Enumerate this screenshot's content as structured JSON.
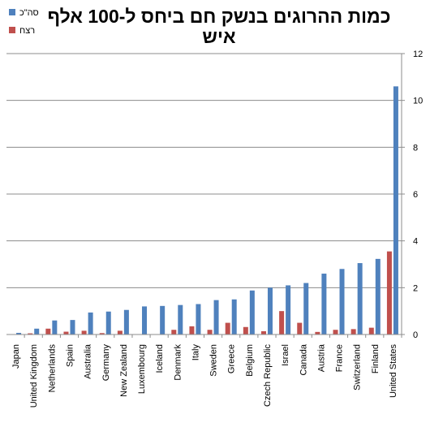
{
  "chart_data": {
    "type": "bar",
    "title_lines": [
      "כמות ההרוגים בנשק חם ביחס ל-100 אלף",
      "איש"
    ],
    "categories": [
      "Japan",
      "United Kingdom",
      "Netherlands",
      "Spain",
      "Australia",
      "Germany",
      "New Zealand",
      "Luxembourg",
      "Iceland",
      "Denmark",
      "Italy",
      "Sweden",
      "Greece",
      "Belgium",
      "Czech Republic",
      "Israel",
      "Canada",
      "Austria",
      "France",
      "Switzerland",
      "Finland",
      "United States"
    ],
    "series": [
      {
        "name": "סה\"כ",
        "color": "#4F81BD",
        "values": [
          0.07,
          0.25,
          0.6,
          0.62,
          0.94,
          0.98,
          1.05,
          1.2,
          1.22,
          1.26,
          1.3,
          1.47,
          1.5,
          1.88,
          2.0,
          2.1,
          2.2,
          2.6,
          2.8,
          3.05,
          3.23,
          10.6
        ]
      },
      {
        "name": "רצח",
        "color": "#C0504D",
        "values": [
          0.0,
          0.05,
          0.25,
          0.12,
          0.16,
          0.06,
          0.16,
          0.0,
          0.0,
          0.2,
          0.35,
          0.2,
          0.5,
          0.32,
          0.14,
          1.0,
          0.5,
          0.11,
          0.2,
          0.23,
          0.29,
          3.55
        ]
      }
    ],
    "ylim": [
      0,
      12
    ],
    "yticks": [
      "0",
      "2",
      "4",
      "6",
      "8",
      "10",
      "12"
    ],
    "y_axis_side": "right",
    "grid": true,
    "legend_position": "top-left"
  }
}
